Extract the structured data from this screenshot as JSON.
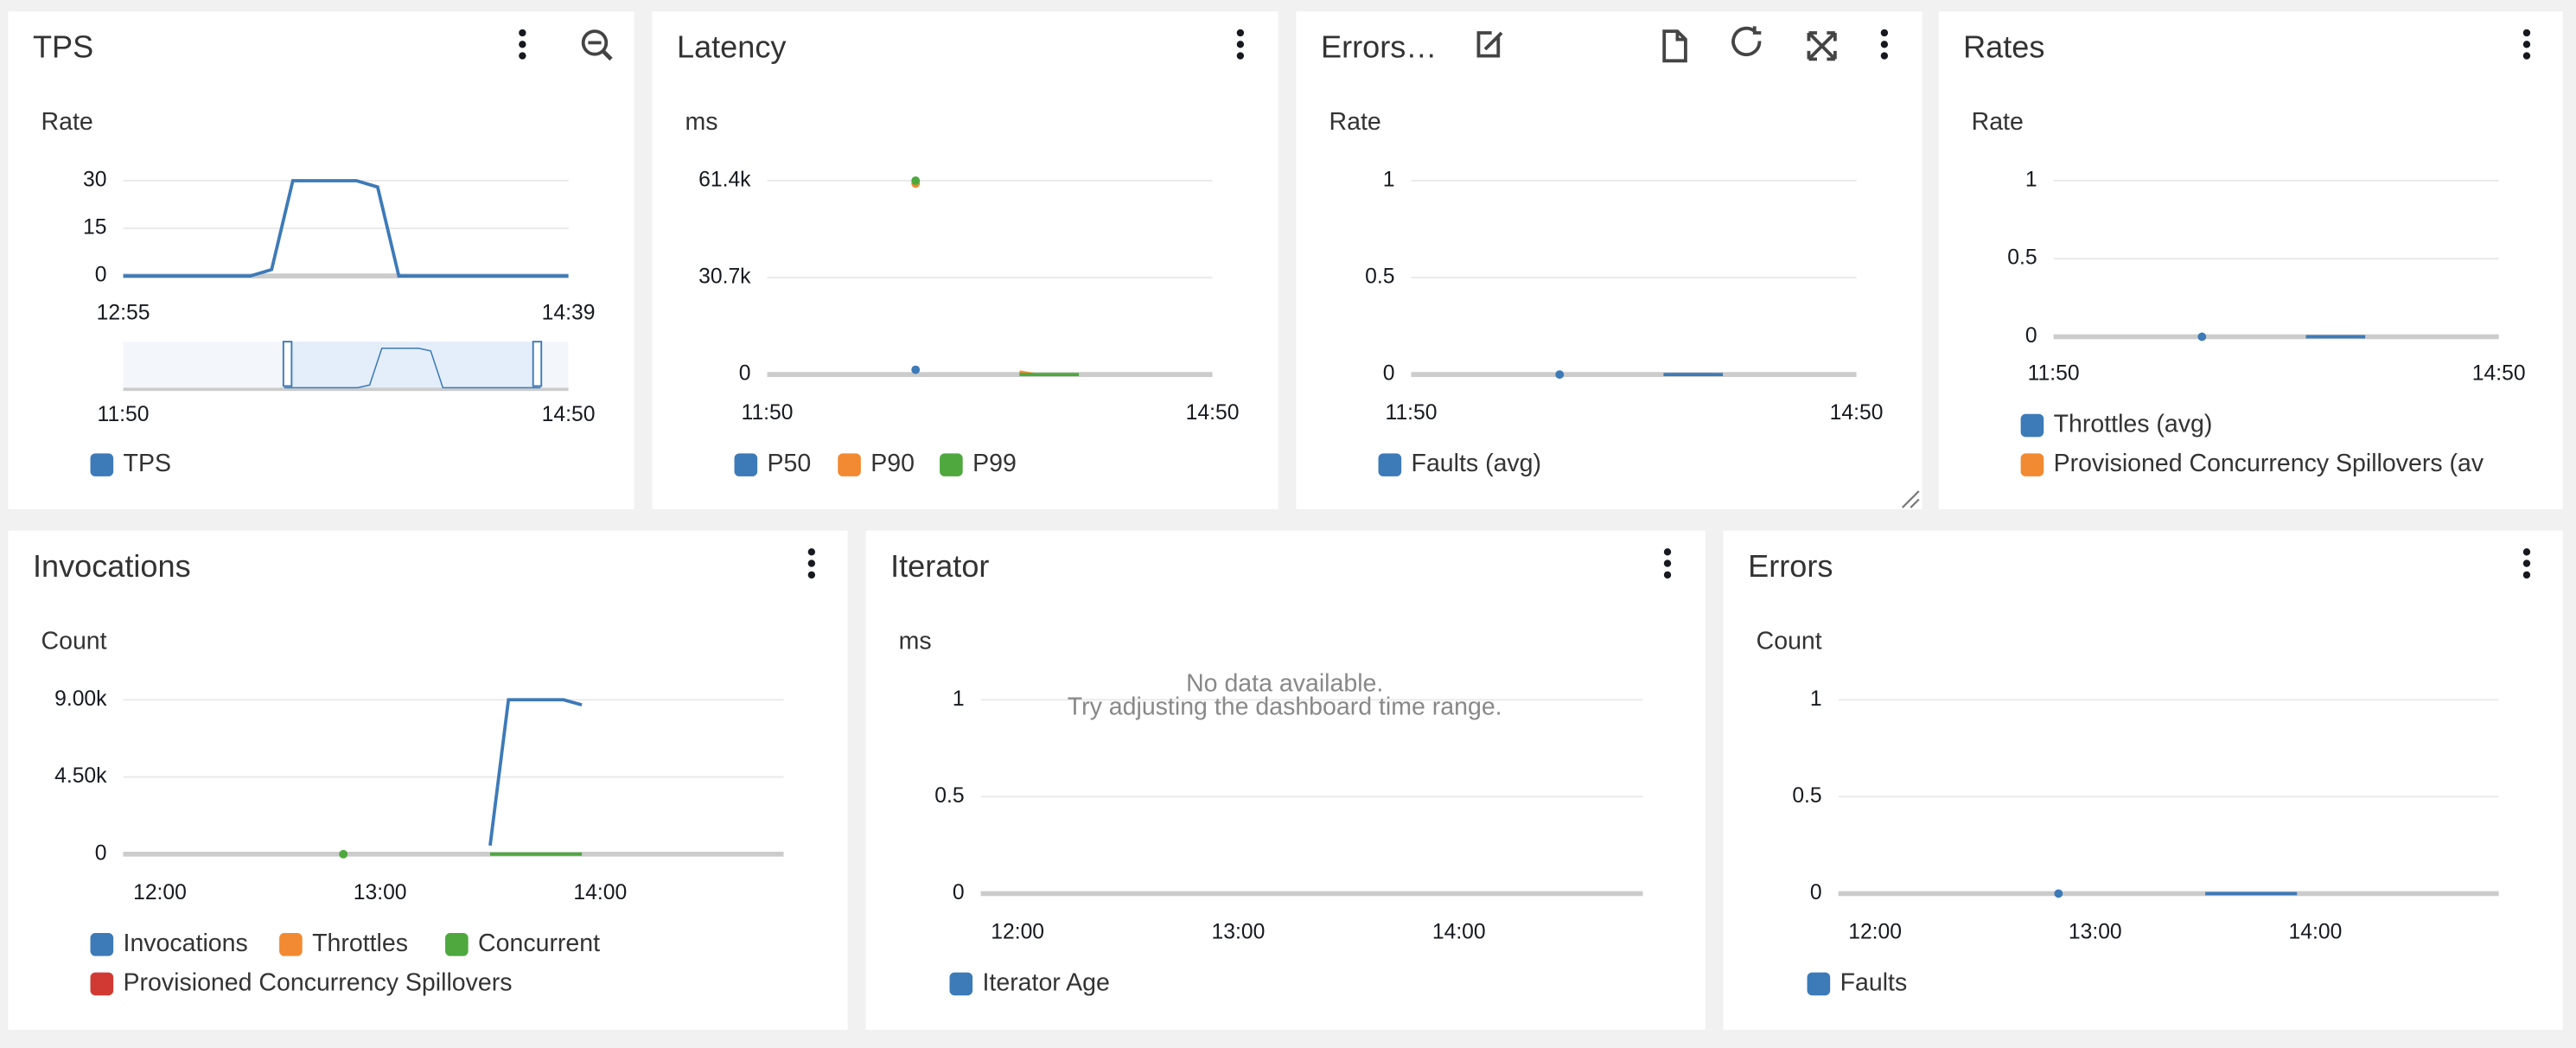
{
  "panels": [
    {
      "title": "TPS",
      "y_label": "Rate",
      "categories": [
        "12:55",
        null,
        null,
        null,
        null,
        null,
        null,
        null,
        null,
        null,
        null,
        null,
        null,
        null,
        null,
        null,
        null,
        null,
        null,
        null,
        null,
        "14:39"
      ],
      "ylim": [
        0,
        30
      ],
      "yticks": [
        0,
        15,
        30
      ],
      "series": [
        {
          "name": "TPS",
          "color": "#3d7ab8",
          "values": [
            0,
            0,
            0,
            0,
            0,
            0,
            0,
            2,
            30,
            30,
            30,
            30,
            28,
            0,
            0,
            0,
            0,
            0,
            0,
            0,
            0,
            0
          ]
        }
      ],
      "brush": {
        "labels": [
          "11:50",
          "14:50"
        ]
      }
    },
    {
      "title": "Latency",
      "y_label": "ms",
      "categories": [
        "11:50",
        null,
        null,
        null,
        null,
        null,
        null,
        null,
        null,
        null,
        null,
        null,
        null,
        null,
        null,
        null,
        null,
        null,
        null,
        null,
        null,
        null,
        null,
        null,
        null,
        null,
        null,
        null,
        null,
        null,
        "14:50"
      ],
      "ylim": [
        0,
        61400
      ],
      "yticks": [
        0,
        {
          "value": 30700,
          "label": "30.7k"
        },
        {
          "value": 61400,
          "label": "61.4k"
        }
      ],
      "series": [
        {
          "name": "P50",
          "color": "#3d7ab8",
          "values": [
            null,
            null,
            null,
            null,
            null,
            null,
            null,
            null,
            null,
            null,
            1500,
            null,
            null,
            null,
            null,
            null,
            null,
            null,
            null,
            null,
            null,
            null,
            null,
            null,
            null,
            null,
            null,
            null,
            null,
            null,
            null
          ]
        },
        {
          "name": "P90",
          "color": "#f28a31",
          "values": [
            null,
            null,
            null,
            null,
            null,
            null,
            null,
            null,
            null,
            null,
            60500,
            null,
            null,
            null,
            null,
            null,
            null,
            800,
            0,
            null,
            null,
            null,
            null,
            null,
            null,
            null,
            null,
            null,
            null,
            null,
            null
          ]
        },
        {
          "name": "P99",
          "color": "#4ea83e",
          "values": [
            null,
            null,
            null,
            null,
            null,
            null,
            null,
            null,
            null,
            null,
            61400,
            null,
            null,
            null,
            null,
            null,
            null,
            0,
            0,
            0,
            0,
            0,
            null,
            null,
            null,
            null,
            null,
            null,
            null,
            null,
            null
          ]
        }
      ]
    },
    {
      "title": "Errors…",
      "y_label": "Rate",
      "categories": [
        "11:50",
        null,
        null,
        null,
        null,
        null,
        null,
        null,
        null,
        null,
        null,
        null,
        null,
        null,
        null,
        null,
        null,
        null,
        null,
        null,
        null,
        null,
        null,
        null,
        null,
        null,
        null,
        null,
        null,
        null,
        "14:50"
      ],
      "ylim": [
        0,
        1
      ],
      "yticks": [
        0,
        0.5,
        1
      ],
      "series": [
        {
          "name": "Faults (avg)",
          "color": "#3d7ab8",
          "values": [
            null,
            null,
            null,
            null,
            null,
            null,
            null,
            null,
            null,
            null,
            0,
            null,
            null,
            null,
            null,
            null,
            null,
            0,
            0,
            0,
            0,
            0,
            null,
            null,
            null,
            null,
            null,
            null,
            null,
            null,
            null
          ]
        }
      ]
    },
    {
      "title": "Rates",
      "y_label": "Rate",
      "categories": [
        "11:50",
        null,
        null,
        null,
        null,
        null,
        null,
        null,
        null,
        null,
        null,
        null,
        null,
        null,
        null,
        null,
        null,
        null,
        null,
        null,
        null,
        null,
        null,
        null,
        null,
        null,
        null,
        null,
        null,
        null,
        "14:50"
      ],
      "ylim": [
        0,
        1
      ],
      "yticks": [
        0,
        0.5,
        1
      ],
      "series": [
        {
          "name": "Throttles (avg)",
          "color": "#3d7ab8",
          "values": [
            null,
            null,
            null,
            null,
            null,
            null,
            null,
            null,
            null,
            null,
            0,
            null,
            null,
            null,
            null,
            null,
            null,
            0,
            0,
            0,
            0,
            0,
            null,
            null,
            null,
            null,
            null,
            null,
            null,
            null,
            null
          ]
        },
        {
          "name": "Provisioned Concurrency Spillovers (av",
          "color": "#f28a31",
          "values": [
            null,
            null,
            null,
            null,
            null,
            null,
            null,
            null,
            null,
            null,
            null,
            null,
            null,
            null,
            null,
            null,
            null,
            null,
            null,
            null,
            null,
            null,
            null,
            null,
            null,
            null,
            null,
            null,
            null,
            null,
            null
          ]
        }
      ]
    },
    {
      "title": "Invocations",
      "y_label": "Count",
      "categories": [
        null,
        null,
        "12:00",
        null,
        null,
        null,
        null,
        null,
        null,
        null,
        null,
        null,
        null,
        null,
        "13:00",
        null,
        null,
        null,
        null,
        null,
        null,
        null,
        null,
        null,
        null,
        null,
        "14:00",
        null,
        null,
        null,
        null,
        null,
        null,
        null,
        null,
        null,
        null
      ],
      "ylim": [
        0,
        9000
      ],
      "yticks": [
        0,
        {
          "value": 4500,
          "label": "4.50k"
        },
        {
          "value": 9000,
          "label": "9.00k"
        }
      ],
      "series": [
        {
          "name": "Invocations",
          "color": "#3d7ab8",
          "values": [
            null,
            null,
            null,
            null,
            null,
            null,
            null,
            null,
            null,
            null,
            null,
            null,
            null,
            null,
            null,
            null,
            null,
            null,
            null,
            null,
            500,
            9000,
            9000,
            9000,
            9000,
            8700,
            null,
            null,
            null,
            null,
            null,
            null,
            null,
            null,
            null,
            null,
            null
          ]
        },
        {
          "name": "Throttles",
          "color": "#f28a31",
          "values": [
            null,
            null,
            null,
            null,
            null,
            null,
            null,
            null,
            null,
            null,
            null,
            null,
            null,
            null,
            null,
            null,
            null,
            null,
            null,
            null,
            null,
            null,
            null,
            null,
            null,
            null,
            null,
            null,
            null,
            null,
            null,
            null,
            null,
            null,
            null,
            null,
            null
          ]
        },
        {
          "name": "Concurrent",
          "color": "#4ea83e",
          "values": [
            null,
            null,
            null,
            null,
            null,
            null,
            null,
            null,
            null,
            null,
            null,
            null,
            0,
            null,
            null,
            null,
            null,
            null,
            null,
            null,
            0,
            0,
            0,
            0,
            0,
            0,
            null,
            null,
            null,
            null,
            null,
            null,
            null,
            null,
            null,
            null,
            null
          ]
        },
        {
          "name": "Provisioned Concurrency Spillovers",
          "color": "#d13a32",
          "values": [
            null,
            null,
            null,
            null,
            null,
            null,
            null,
            null,
            null,
            null,
            null,
            null,
            null,
            null,
            null,
            null,
            null,
            null,
            null,
            null,
            null,
            null,
            null,
            null,
            null,
            null,
            null,
            null,
            null,
            null,
            null,
            null,
            null,
            null,
            null,
            null,
            null
          ]
        }
      ]
    },
    {
      "title": "Iterator",
      "y_label": "ms",
      "categories": [
        null,
        null,
        "12:00",
        null,
        null,
        null,
        null,
        null,
        null,
        null,
        null,
        null,
        null,
        null,
        "13:00",
        null,
        null,
        null,
        null,
        null,
        null,
        null,
        null,
        null,
        null,
        null,
        "14:00",
        null,
        null,
        null,
        null,
        null,
        null,
        null,
        null,
        null,
        null
      ],
      "ylim": [
        0,
        1
      ],
      "yticks": [
        0,
        0.5,
        1
      ],
      "series": [
        {
          "name": "Iterator Age",
          "color": "#3d7ab8",
          "values": [
            null,
            null,
            null,
            null,
            null,
            null,
            null,
            null,
            null,
            null,
            null,
            null,
            null,
            null,
            null,
            null,
            null,
            null,
            null,
            null,
            null,
            null,
            null,
            null,
            null,
            null,
            null,
            null,
            null,
            null,
            null,
            null,
            null,
            null,
            null,
            null,
            null
          ]
        }
      ],
      "message": [
        "No data available.",
        "Try adjusting the dashboard time range."
      ]
    },
    {
      "title": "Errors",
      "y_label": "Count",
      "categories": [
        null,
        null,
        "12:00",
        null,
        null,
        null,
        null,
        null,
        null,
        null,
        null,
        null,
        null,
        null,
        "13:00",
        null,
        null,
        null,
        null,
        null,
        null,
        null,
        null,
        null,
        null,
        null,
        "14:00",
        null,
        null,
        null,
        null,
        null,
        null,
        null,
        null,
        null,
        null
      ],
      "ylim": [
        0,
        1
      ],
      "yticks": [
        0,
        0.5,
        1
      ],
      "series": [
        {
          "name": "Faults",
          "color": "#3d7ab8",
          "values": [
            null,
            null,
            null,
            null,
            null,
            null,
            null,
            null,
            null,
            null,
            null,
            null,
            0,
            null,
            null,
            null,
            null,
            null,
            null,
            null,
            0,
            0,
            0,
            0,
            0,
            0,
            null,
            null,
            null,
            null,
            null,
            null,
            null,
            null,
            null,
            null,
            null
          ]
        }
      ]
    }
  ]
}
